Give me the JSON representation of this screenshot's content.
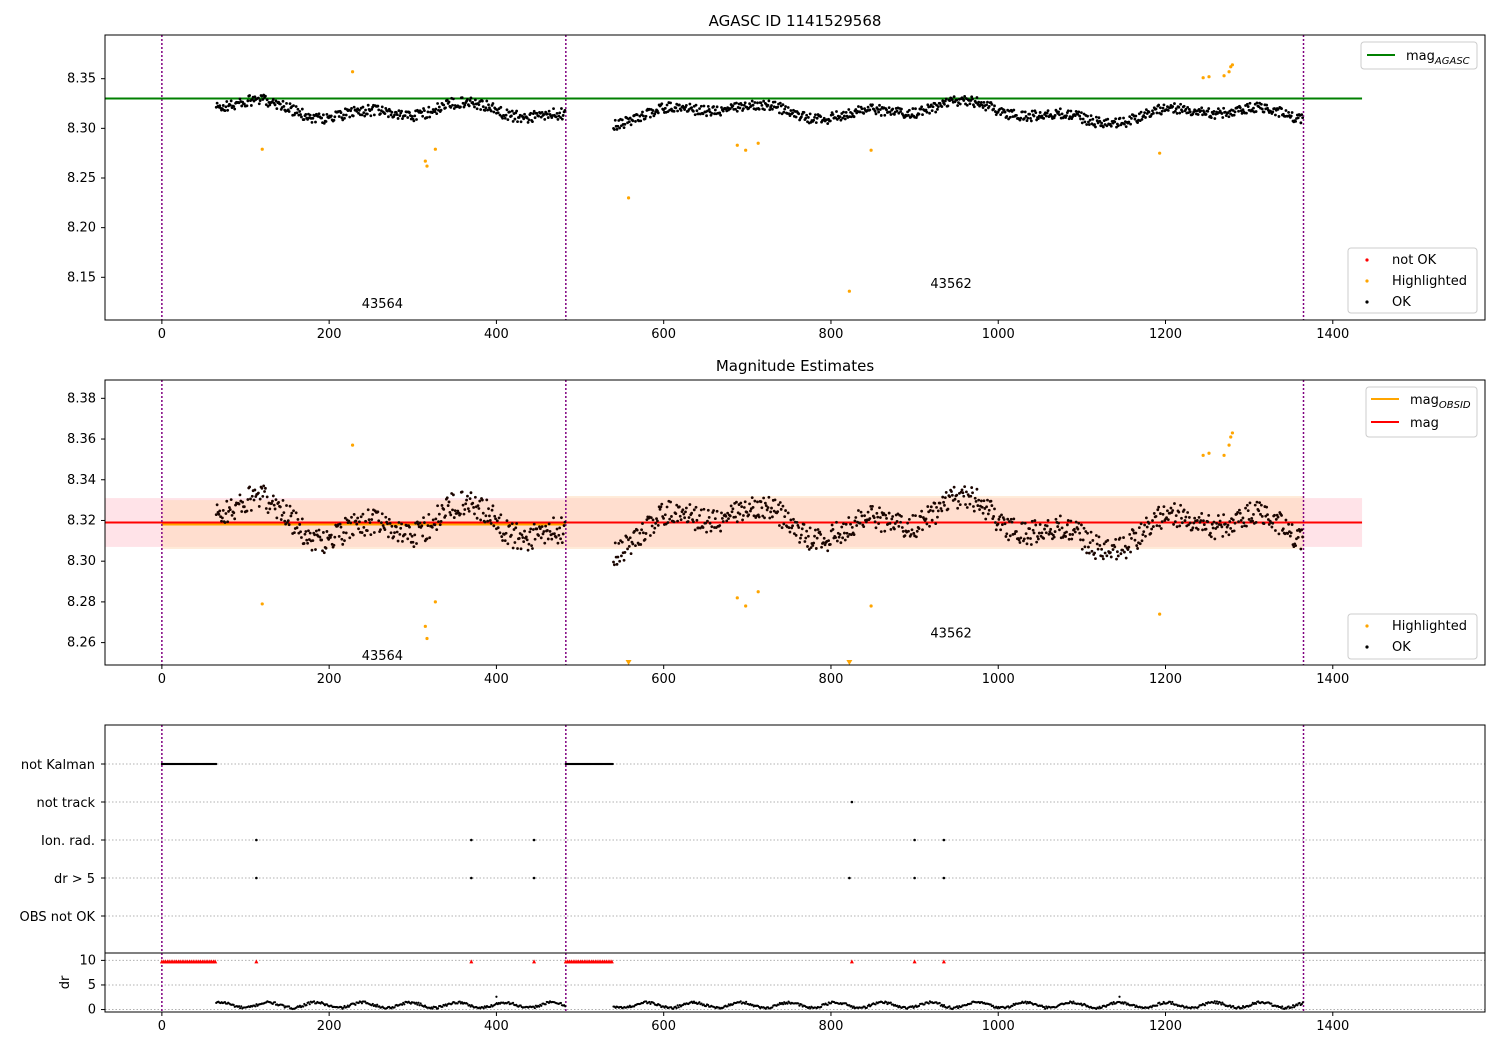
{
  "figure": {
    "bg": "#ffffff"
  },
  "colors": {
    "ok": "#000000",
    "highlighted": "#ffa500",
    "not_ok": "#ff0000",
    "green": "#008000",
    "purple": "#800080",
    "band_red": "#ffc0cb",
    "band_orange": "#ffdab9",
    "grid": "#b0b0b0"
  },
  "chart_data": [
    {
      "id": "agasc",
      "type": "scatter",
      "title": "AGASC ID 1141529568",
      "xlim": [
        -68,
        1582
      ],
      "ylim": [
        8.107,
        8.394
      ],
      "xticks": [
        0,
        200,
        400,
        600,
        800,
        1000,
        1200,
        1400
      ],
      "yticks": [
        8.15,
        8.2,
        8.25,
        8.3,
        8.35
      ],
      "ytick_labels": [
        "8.15",
        "8.20",
        "8.25",
        "8.30",
        "8.35"
      ],
      "vlines": [
        0,
        483,
        1365
      ],
      "hline": {
        "y": 8.33,
        "x": [
          -68,
          1435
        ],
        "color": "green",
        "label": "mag",
        "label_sub": "AGASC"
      },
      "annotations": [
        {
          "text": "43564",
          "x": 215,
          "y": 8.115
        },
        {
          "text": "43562",
          "x": 895,
          "y": 8.135
        }
      ],
      "legend_marks": [
        {
          "label": "not OK",
          "color": "not_ok"
        },
        {
          "label": "Highlighted",
          "color": "highlighted"
        },
        {
          "label": "OK",
          "color": "ok"
        }
      ],
      "segments": [
        {
          "x0": 65,
          "x1": 483,
          "base": 8.317,
          "amp": 0.014
        },
        {
          "x0": 540,
          "x1": 1365,
          "base": 8.316,
          "amp": 0.013
        }
      ],
      "highlighted_points": [
        [
          120,
          8.279
        ],
        [
          228,
          8.357
        ],
        [
          315,
          8.267
        ],
        [
          317,
          8.262
        ],
        [
          327,
          8.279
        ],
        [
          558,
          8.23
        ],
        [
          688,
          8.283
        ],
        [
          698,
          8.278
        ],
        [
          713,
          8.285
        ],
        [
          822,
          8.136
        ],
        [
          848,
          8.278
        ],
        [
          1193,
          8.275
        ],
        [
          1245,
          8.351
        ],
        [
          1252,
          8.352
        ],
        [
          1270,
          8.353
        ],
        [
          1276,
          8.357
        ],
        [
          1278,
          8.362
        ],
        [
          1280,
          8.364
        ]
      ]
    },
    {
      "id": "mag-estimates",
      "type": "scatter",
      "title": "Magnitude Estimates",
      "xlim": [
        -68,
        1582
      ],
      "ylim": [
        8.249,
        8.389
      ],
      "xticks": [
        0,
        200,
        400,
        600,
        800,
        1000,
        1200,
        1400
      ],
      "yticks": [
        8.26,
        8.28,
        8.3,
        8.32,
        8.34,
        8.36,
        8.38
      ],
      "ytick_labels": [
        "8.26",
        "8.28",
        "8.30",
        "8.32",
        "8.34",
        "8.36",
        "8.38"
      ],
      "vlines": [
        0,
        483,
        1365
      ],
      "mag": 8.319,
      "mag_band": [
        8.307,
        8.331
      ],
      "obsid_mag": [
        {
          "x0": 0,
          "x1": 483,
          "mag": 8.318,
          "band": [
            8.306,
            8.33
          ]
        },
        {
          "x0": 483,
          "x1": 1365,
          "mag": 8.319,
          "band": [
            8.306,
            8.332
          ]
        }
      ],
      "annotations": [
        {
          "text": "43564",
          "x": 215,
          "y": 8.253
        },
        {
          "text": "43562",
          "x": 895,
          "y": 8.264
        }
      ],
      "legend_lines": [
        {
          "label": "mag",
          "label_sub": "OBSID",
          "color": "highlighted"
        },
        {
          "label": "mag",
          "label_sub": "",
          "color": "not_ok"
        }
      ],
      "legend_marks": [
        {
          "label": "Highlighted",
          "color": "highlighted"
        },
        {
          "label": "OK",
          "color": "ok"
        }
      ],
      "highlighted_points": [
        [
          120,
          8.279
        ],
        [
          228,
          8.357
        ],
        [
          315,
          8.268
        ],
        [
          317,
          8.262
        ],
        [
          327,
          8.28
        ],
        [
          688,
          8.282
        ],
        [
          698,
          8.278
        ],
        [
          713,
          8.285
        ],
        [
          848,
          8.278
        ],
        [
          1193,
          8.274
        ],
        [
          1245,
          8.352
        ],
        [
          1252,
          8.353
        ],
        [
          1270,
          8.352
        ],
        [
          1276,
          8.357
        ],
        [
          1278,
          8.361
        ],
        [
          1280,
          8.363
        ]
      ],
      "below_range_markers": [
        558,
        822
      ]
    },
    {
      "id": "flags",
      "type": "scatter",
      "xlim": [
        -68,
        1582
      ],
      "categories": [
        "not Kalman",
        "not track",
        "Ion. rad.",
        "dr > 5",
        "OBS not OK"
      ],
      "flags": {
        "not Kalman": [
          [
            0,
            65
          ],
          [
            483,
            540
          ]
        ],
        "not track": [
          825
        ],
        "Ion. rad.": [
          113,
          370,
          445,
          900,
          935
        ],
        "dr > 5": [
          113,
          370,
          445,
          822,
          900,
          935
        ],
        "OBS not OK": []
      },
      "vlines": [
        0,
        483,
        1365
      ]
    },
    {
      "id": "dr",
      "type": "scatter",
      "ylabel": "dr",
      "xlim": [
        -68,
        1582
      ],
      "ylim": [
        0,
        10
      ],
      "yticks": [
        0,
        5,
        10
      ],
      "ytick_labels": [
        "0",
        "5",
        "10"
      ],
      "xticks": [
        0,
        200,
        400,
        600,
        800,
        1000,
        1200,
        1400
      ],
      "vlines": [
        0,
        483,
        1365
      ],
      "capped_red": [
        [
          0,
          65
        ],
        [
          483,
          540
        ]
      ],
      "capped_single": [
        113,
        370,
        445,
        825,
        900,
        935
      ]
    }
  ]
}
